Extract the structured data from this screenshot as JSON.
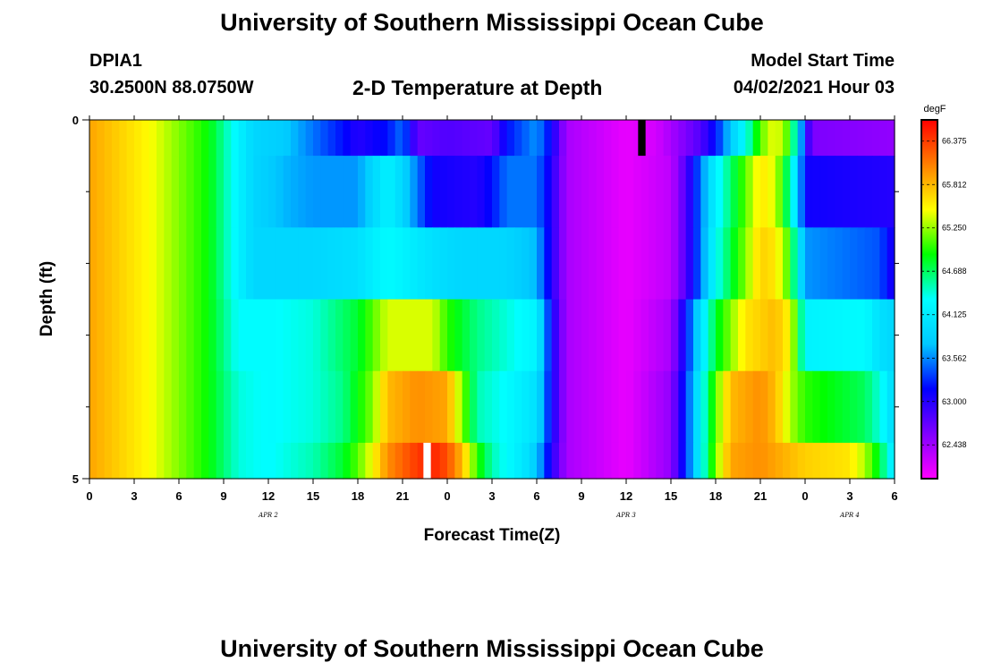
{
  "header": {
    "title": "University of Southern Mississippi Ocean Cube",
    "footer_title": "University of Southern Mississippi Ocean Cube",
    "station": "DPIA1",
    "coords": "30.2500N  88.0750W",
    "plot_title": "2-D Temperature at Depth",
    "model_start_label": "Model Start Time",
    "model_start_value": "04/02/2021 Hour 03"
  },
  "chart_data": {
    "type": "heatmap",
    "title": "2-D Temperature at Depth",
    "xlabel": "Forecast Time(Z)",
    "ylabel": "Depth (ft)",
    "x_hours": [
      0,
      3,
      6,
      9,
      12,
      15,
      18,
      21,
      24,
      27,
      30,
      33,
      36,
      39,
      42,
      45,
      48,
      51,
      54
    ],
    "x_tick_labels": [
      "0",
      "3",
      "6",
      "9",
      "12",
      "15",
      "18",
      "21",
      "0",
      "3",
      "6",
      "9",
      "12",
      "15",
      "18",
      "21",
      "0",
      "3",
      "6"
    ],
    "x_range_hours": [
      0,
      54
    ],
    "day_labels": [
      {
        "label": "APR 2",
        "hour": 12
      },
      {
        "label": "APR 3",
        "hour": 36
      },
      {
        "label": "APR 4",
        "hour": 51
      }
    ],
    "y_range": [
      0,
      5
    ],
    "y_tick_labels": [
      "0",
      "5"
    ],
    "y_minor_ticks": [
      1,
      2,
      3,
      4
    ],
    "colorbar": {
      "unit": "degF",
      "min": 62.0,
      "max": 66.65,
      "tick_values": [
        66.375,
        65.812,
        65.25,
        64.688,
        64.125,
        63.562,
        63.0,
        62.438
      ],
      "tick_labels": [
        "66.375",
        "65.812",
        "65.250",
        "64.688",
        "64.125",
        "63.562",
        "63.000",
        "62.438"
      ],
      "colors_low_to_high": [
        "#ff00ff",
        "#8000ff",
        "#0000ff",
        "#00c8ff",
        "#00ffff",
        "#00ff00",
        "#ffff00",
        "#ff8000",
        "#ff0000"
      ]
    },
    "depth_bands": [
      {
        "top": 0,
        "bottom": 0.5,
        "points": [
          [
            0,
            65.9
          ],
          [
            4,
            65.5
          ],
          [
            8,
            64.9
          ],
          [
            10,
            64.2
          ],
          [
            11,
            63.9
          ],
          [
            13,
            63.8
          ],
          [
            15,
            63.5
          ],
          [
            17,
            63.2
          ],
          [
            18,
            63.0
          ],
          [
            20,
            63.2
          ],
          [
            21,
            63.5
          ],
          [
            22,
            62.7
          ],
          [
            24,
            62.8
          ],
          [
            27,
            62.7
          ],
          [
            28,
            63.2
          ],
          [
            30,
            63.6
          ],
          [
            31,
            63.1
          ],
          [
            32,
            62.4
          ],
          [
            36,
            62.1
          ],
          [
            38,
            62.2
          ],
          [
            40,
            62.6
          ],
          [
            41,
            62.8
          ],
          [
            42,
            63.2
          ],
          [
            43,
            63.8
          ],
          [
            44,
            64.3
          ],
          [
            45,
            65.1
          ],
          [
            46,
            65.5
          ],
          [
            47,
            65.0
          ],
          [
            47.5,
            64.1
          ],
          [
            48,
            63.1
          ],
          [
            48.5,
            62.6
          ],
          [
            54,
            62.5
          ]
        ]
      },
      {
        "top": 0.5,
        "bottom": 1.5,
        "points": [
          [
            0,
            65.9
          ],
          [
            4,
            65.5
          ],
          [
            8,
            64.9
          ],
          [
            10,
            64.2
          ],
          [
            11,
            63.9
          ],
          [
            13,
            63.7
          ],
          [
            15,
            63.6
          ],
          [
            18,
            63.6
          ],
          [
            19,
            63.9
          ],
          [
            20,
            64.2
          ],
          [
            21,
            63.9
          ],
          [
            22,
            63.5
          ],
          [
            23,
            63.1
          ],
          [
            26,
            63.0
          ],
          [
            27,
            63.2
          ],
          [
            28,
            63.5
          ],
          [
            30,
            63.5
          ],
          [
            31,
            63.0
          ],
          [
            32,
            62.4
          ],
          [
            36,
            62.1
          ],
          [
            39,
            62.3
          ],
          [
            40,
            62.8
          ],
          [
            41,
            63.5
          ],
          [
            42,
            64.2
          ],
          [
            44,
            65.1
          ],
          [
            45,
            65.6
          ],
          [
            46,
            65.4
          ],
          [
            47,
            64.5
          ],
          [
            47.5,
            63.9
          ],
          [
            48,
            63.1
          ],
          [
            54,
            63.0
          ]
        ]
      },
      {
        "top": 1.5,
        "bottom": 2.5,
        "points": [
          [
            0,
            65.9
          ],
          [
            4,
            65.5
          ],
          [
            8,
            64.9
          ],
          [
            10,
            64.2
          ],
          [
            11,
            63.9
          ],
          [
            13,
            63.9
          ],
          [
            15,
            63.9
          ],
          [
            18,
            64.0
          ],
          [
            20,
            64.3
          ],
          [
            21,
            64.2
          ],
          [
            23,
            64.0
          ],
          [
            25,
            63.9
          ],
          [
            28,
            63.9
          ],
          [
            30,
            63.7
          ],
          [
            31,
            63.0
          ],
          [
            32,
            62.4
          ],
          [
            36,
            62.1
          ],
          [
            39,
            62.3
          ],
          [
            40,
            62.8
          ],
          [
            41,
            63.5
          ],
          [
            42,
            64.3
          ],
          [
            44,
            65.2
          ],
          [
            45,
            65.7
          ],
          [
            46,
            65.6
          ],
          [
            47,
            65.0
          ],
          [
            47.5,
            64.2
          ],
          [
            48,
            63.6
          ],
          [
            53,
            63.4
          ],
          [
            54,
            63.0
          ]
        ]
      },
      {
        "top": 2.5,
        "bottom": 3.5,
        "points": [
          [
            0,
            65.9
          ],
          [
            4,
            65.5
          ],
          [
            8,
            64.9
          ],
          [
            10,
            64.3
          ],
          [
            12,
            64.3
          ],
          [
            15,
            64.4
          ],
          [
            18,
            64.8
          ],
          [
            19,
            65.1
          ],
          [
            20,
            65.4
          ],
          [
            23,
            65.4
          ],
          [
            24,
            65.0
          ],
          [
            26,
            64.6
          ],
          [
            28,
            64.4
          ],
          [
            30,
            64.2
          ],
          [
            31,
            63.1
          ],
          [
            32,
            62.4
          ],
          [
            36,
            62.1
          ],
          [
            39,
            62.4
          ],
          [
            40,
            63.2
          ],
          [
            41,
            64.0
          ],
          [
            42,
            64.8
          ],
          [
            44,
            65.6
          ],
          [
            46,
            65.8
          ],
          [
            47,
            65.5
          ],
          [
            47.5,
            64.9
          ],
          [
            48,
            64.2
          ],
          [
            52,
            64.3
          ],
          [
            53,
            64.0
          ],
          [
            54,
            63.9
          ]
        ]
      },
      {
        "top": 3.5,
        "bottom": 4.5,
        "points": [
          [
            0,
            65.9
          ],
          [
            4,
            65.5
          ],
          [
            8,
            64.9
          ],
          [
            10,
            64.4
          ],
          [
            12,
            64.3
          ],
          [
            15,
            64.4
          ],
          [
            17,
            64.6
          ],
          [
            18,
            64.9
          ],
          [
            19,
            65.2
          ],
          [
            20,
            65.8
          ],
          [
            22,
            66.0
          ],
          [
            24,
            65.9
          ],
          [
            25,
            65.2
          ],
          [
            26,
            64.5
          ],
          [
            28,
            64.3
          ],
          [
            30,
            64.0
          ],
          [
            31,
            63.1
          ],
          [
            32,
            62.4
          ],
          [
            36,
            62.1
          ],
          [
            39,
            62.5
          ],
          [
            40,
            63.3
          ],
          [
            41,
            64.2
          ],
          [
            42,
            65.1
          ],
          [
            43,
            65.8
          ],
          [
            45,
            66.0
          ],
          [
            46,
            65.8
          ],
          [
            47,
            65.3
          ],
          [
            48,
            65.0
          ],
          [
            52,
            64.7
          ],
          [
            53,
            64.4
          ],
          [
            54,
            63.9
          ]
        ]
      },
      {
        "top": 4.5,
        "bottom": 5.0,
        "points": [
          [
            0,
            65.9
          ],
          [
            4,
            65.5
          ],
          [
            8,
            64.9
          ],
          [
            10,
            64.4
          ],
          [
            12,
            64.3
          ],
          [
            15,
            64.5
          ],
          [
            17,
            64.8
          ],
          [
            18,
            65.1
          ],
          [
            19,
            65.5
          ],
          [
            20,
            66.0
          ],
          [
            22,
            66.4
          ],
          [
            23,
            66.5
          ],
          [
            24,
            66.3
          ],
          [
            25,
            65.8
          ],
          [
            26,
            65.0
          ],
          [
            27,
            64.5
          ],
          [
            29,
            64.1
          ],
          [
            30,
            63.8
          ],
          [
            31,
            63.0
          ],
          [
            32,
            62.4
          ],
          [
            36,
            62.1
          ],
          [
            39,
            62.5
          ],
          [
            40,
            63.3
          ],
          [
            41,
            64.2
          ],
          [
            42,
            65.2
          ],
          [
            43,
            65.9
          ],
          [
            45,
            66.0
          ],
          [
            48,
            65.7
          ],
          [
            51,
            65.6
          ],
          [
            52,
            65.3
          ],
          [
            53,
            64.8
          ],
          [
            54,
            64.0
          ]
        ]
      }
    ],
    "markers": [
      {
        "color": "#000000",
        "hour_start": 36.8,
        "hour_end": 37.3,
        "depth_top": 0,
        "depth_bottom": 0.5
      },
      {
        "color": "#ffffff",
        "hour_start": 22.4,
        "hour_end": 22.9,
        "depth_top": 4.5,
        "depth_bottom": 5.0
      }
    ]
  }
}
